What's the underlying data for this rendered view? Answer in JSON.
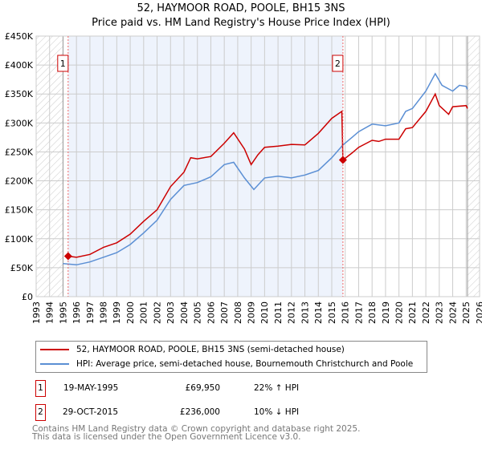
{
  "title": "52, HAYMOOR ROAD, POOLE, BH15 3NS",
  "subtitle": "Price paid vs. HM Land Registry's House Price Index (HPI)",
  "chart_data": {
    "type": "line",
    "title": "52, HAYMOOR ROAD, POOLE, BH15 3NS — Price paid vs. HM Land Registry's House Price Index (HPI)",
    "xlim": [
      1993,
      2026
    ],
    "ylim": [
      0,
      450000
    ],
    "x_ticks": [
      "1993",
      "1994",
      "1995",
      "1996",
      "1997",
      "1998",
      "1999",
      "2000",
      "2001",
      "2002",
      "2003",
      "2004",
      "2005",
      "2006",
      "2007",
      "2008",
      "2009",
      "2010",
      "2011",
      "2012",
      "2013",
      "2014",
      "2015",
      "2016",
      "2017",
      "2018",
      "2019",
      "2020",
      "2021",
      "2022",
      "2023",
      "2024",
      "2025",
      "2026"
    ],
    "y_ticks": [
      {
        "v": 0,
        "label": "£0"
      },
      {
        "v": 50000,
        "label": "£50K"
      },
      {
        "v": 100000,
        "label": "£100K"
      },
      {
        "v": 150000,
        "label": "£150K"
      },
      {
        "v": 200000,
        "label": "£200K"
      },
      {
        "v": 250000,
        "label": "£250K"
      },
      {
        "v": 300000,
        "label": "£300K"
      },
      {
        "v": 350000,
        "label": "£350K"
      },
      {
        "v": 400000,
        "label": "£400K"
      },
      {
        "v": 450000,
        "label": "£450K"
      }
    ],
    "grid": true,
    "series": [
      {
        "name": "52, HAYMOOR ROAD, POOLE, BH15 3NS (semi-detached house)",
        "color": "#cc0000",
        "x": [
          1995.38,
          1996,
          1997,
          1998,
          1999,
          2000,
          2001,
          2002,
          2003,
          2004,
          2004.5,
          2005,
          2006,
          2007,
          2007.7,
          2008.5,
          2009,
          2009.5,
          2010,
          2011,
          2012,
          2013,
          2014,
          2015,
          2015.75,
          2015.83,
          2016.5,
          2017,
          2018,
          2018.5,
          2019,
          2020,
          2020.5,
          2021,
          2022,
          2022.7,
          2023,
          2023.7,
          2024,
          2025,
          2025.1
        ],
        "y": [
          69950,
          68000,
          73000,
          85000,
          93000,
          108000,
          130000,
          150000,
          190000,
          215000,
          240000,
          238000,
          242000,
          265000,
          283000,
          255000,
          228000,
          245000,
          258000,
          260000,
          263000,
          262000,
          282000,
          308000,
          320000,
          236000,
          248000,
          258000,
          270000,
          268000,
          272000,
          272000,
          290000,
          292000,
          320000,
          350000,
          330000,
          315000,
          328000,
          330000,
          325000
        ]
      },
      {
        "name": "HPI: Average price, semi-detached house, Bournemouth Christchurch and Poole",
        "color": "#5b8fd4",
        "x": [
          1995,
          1996,
          1997,
          1998,
          1999,
          2000,
          2001,
          2002,
          2003,
          2004,
          2005,
          2006,
          2007,
          2007.7,
          2008.5,
          2009.2,
          2010,
          2011,
          2012,
          2013,
          2014,
          2015,
          2015.83,
          2016.5,
          2017,
          2018,
          2019,
          2020,
          2020.5,
          2021,
          2022,
          2022.7,
          2023.2,
          2024,
          2024.5,
          2025,
          2025.1
        ],
        "y": [
          57000,
          55000,
          60000,
          68000,
          76000,
          90000,
          110000,
          132000,
          168000,
          192000,
          197000,
          207000,
          228000,
          232000,
          205000,
          185000,
          205000,
          208000,
          205000,
          210000,
          218000,
          240000,
          262000,
          275000,
          285000,
          298000,
          295000,
          300000,
          320000,
          325000,
          355000,
          385000,
          365000,
          355000,
          365000,
          363000,
          358000
        ]
      }
    ],
    "sales": [
      {
        "id": "1",
        "x": 1995.38,
        "price": 69950,
        "date": "19-MAY-1995",
        "price_label": "£69,950",
        "hpi": "22% ↑ HPI"
      },
      {
        "id": "2",
        "x": 2015.83,
        "price": 236000,
        "date": "29-OCT-2015",
        "price_label": "£236,000",
        "hpi": "10% ↓ HPI"
      }
    ],
    "legend_position": "below"
  },
  "legend": {
    "red": "52, HAYMOOR ROAD, POOLE, BH15 3NS (semi-detached house)",
    "blue": "HPI: Average price, semi-detached house, Bournemouth Christchurch and Poole"
  },
  "footer": [
    "Contains HM Land Registry data © Crown copyright and database right 2025.",
    "This data is licensed under the Open Government Licence v3.0."
  ]
}
